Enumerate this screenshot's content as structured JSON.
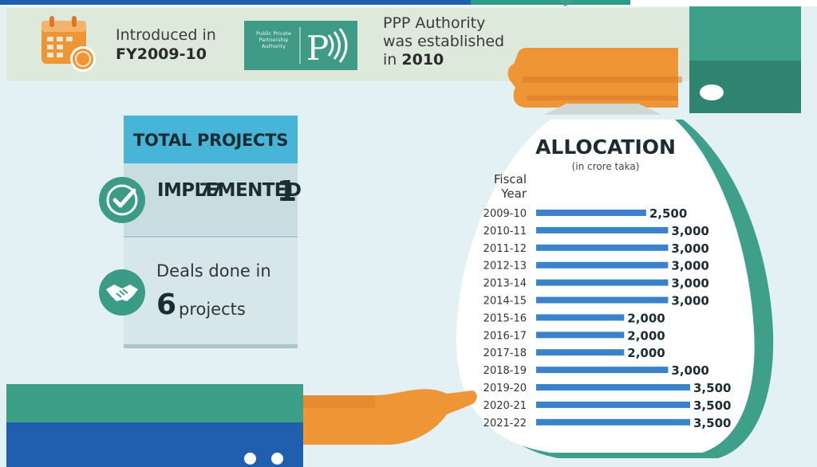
{
  "banner": {
    "intro_line1": "Introduced in",
    "intro_line2": "FY2009-10",
    "ppp_logo_text": "Public Private Partnership Authority",
    "ppp_logo_letter": "P",
    "ppp_line1": "PPP Authority",
    "ppp_line2": "was established",
    "ppp_line3_prefix": "in ",
    "ppp_line3_year": "2010"
  },
  "stats": {
    "total_label": "TOTAL PROJECTS 77",
    "implemented_label": "IMPLEMENTED",
    "implemented_value": "1",
    "deals_label": "Deals done in",
    "deals_value": "6",
    "deals_suffix": "projects"
  },
  "colors": {
    "bar": "#3b83c9",
    "accent_green": "#3a9b86",
    "accent_blue": "#47b5d8",
    "hand_orange": "#ee9536",
    "brand_blue": "#1f5fae"
  },
  "icons": [
    "calendar-money-icon",
    "checkmark-icon",
    "handshake-icon",
    "ppp-logo"
  ],
  "chart_data": {
    "type": "bar",
    "orientation": "horizontal",
    "title": "ALLOCATION",
    "subtitle": "(in crore taka)",
    "ylabel": "Fiscal Year",
    "xlabel": "",
    "categories": [
      "2009-10",
      "2010-11",
      "2011-12",
      "2012-13",
      "2013-14",
      "2014-15",
      "2015-16",
      "2016-17",
      "2017-18",
      "2018-19",
      "2019-20",
      "2020-21",
      "2021-22"
    ],
    "values": [
      2500,
      3000,
      3000,
      3000,
      3000,
      3000,
      2000,
      2000,
      2000,
      3000,
      3500,
      3500,
      3500
    ],
    "value_labels": [
      "2,500",
      "3,000",
      "3,000",
      "3,000",
      "3,000",
      "3,000",
      "2,000",
      "2,000",
      "2,000",
      "3,000",
      "3,500",
      "3,500",
      "3,500"
    ],
    "xlim": [
      0,
      3500
    ],
    "grid": false,
    "legend": "none"
  }
}
